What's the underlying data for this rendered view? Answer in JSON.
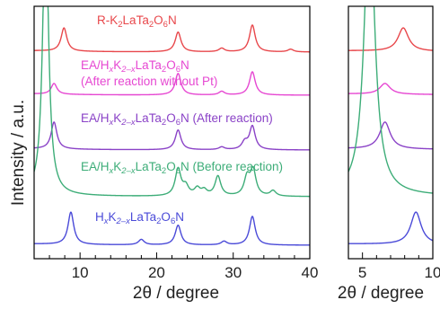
{
  "chart_data": {
    "type": "line",
    "ylabel": "Intensity / a.u.",
    "xlabel": "2θ / degree",
    "panels": [
      {
        "name": "main",
        "xlim": [
          4,
          40
        ],
        "xticks": [
          10,
          20,
          30,
          40
        ],
        "minor_step": 2
      },
      {
        "name": "inset",
        "xlim": [
          4,
          10
        ],
        "xticks": [
          5,
          10
        ],
        "minor_step": 1
      }
    ],
    "series": [
      {
        "key": "r",
        "color": "#e8474b",
        "label_parts": [
          "R-K",
          "2",
          "LaTa",
          "2",
          "O",
          "6",
          "N"
        ],
        "label_kinds": [
          "t",
          "sub",
          "t",
          "sub",
          "t",
          "sub",
          "t"
        ],
        "peaks": [
          [
            7.9,
            26
          ],
          [
            22.8,
            22
          ],
          [
            32.5,
            30
          ],
          [
            28.5,
            4
          ],
          [
            37.5,
            3
          ]
        ]
      },
      {
        "key": "ptfree",
        "color": "#e647d2",
        "label_parts": [
          "EA/H",
          "x",
          "K",
          "2–x",
          "LaTa",
          "2",
          "O",
          "6",
          "N"
        ],
        "label_kinds": [
          "t",
          "sub",
          "t",
          "sub",
          "t",
          "sub",
          "t",
          "sub",
          "t"
        ],
        "label_line2": "(After reaction without Pt)",
        "peaks": [
          [
            6.6,
            12
          ],
          [
            22.8,
            24
          ],
          [
            32.5,
            26
          ],
          [
            28.5,
            4
          ]
        ]
      },
      {
        "key": "after",
        "color": "#8a42c7",
        "label_parts": [
          "EA/H",
          "x",
          "K",
          "2–x",
          "LaTa",
          "2",
          "O",
          "6",
          "N"
        ],
        "label_kinds": [
          "t",
          "sub",
          "t",
          "sub",
          "t",
          "sub",
          "t",
          "sub",
          "t"
        ],
        "label_tail": " (After reaction)",
        "peaks": [
          [
            6.6,
            30
          ],
          [
            22.8,
            22
          ],
          [
            31.5,
            8
          ],
          [
            32.5,
            26
          ],
          [
            28.5,
            3
          ]
        ]
      },
      {
        "key": "before",
        "color": "#3dad78",
        "label_parts": [
          "EA/H",
          "x",
          "K",
          "2–x",
          "LaTa",
          "2",
          "O",
          "6",
          "N"
        ],
        "label_kinds": [
          "t",
          "sub",
          "t",
          "sub",
          "t",
          "sub",
          "t",
          "sub",
          "t"
        ],
        "label_tail": " (Before reaction)",
        "peaks": [
          [
            5.5,
            320
          ],
          [
            22.8,
            30
          ],
          [
            28.0,
            22
          ],
          [
            31.8,
            20
          ],
          [
            32.6,
            28
          ],
          [
            23.8,
            10
          ],
          [
            25.3,
            8
          ],
          [
            26.2,
            6
          ],
          [
            35.2,
            6
          ]
        ]
      },
      {
        "key": "hx",
        "color": "#4a4ad8",
        "label_parts": [
          "H",
          "x",
          "K",
          "2–x",
          "LaTa",
          "2",
          "O",
          "6",
          "N"
        ],
        "label_kinds": [
          "t",
          "sub",
          "t",
          "sub",
          "t",
          "sub",
          "t",
          "sub",
          "t"
        ],
        "peaks": [
          [
            8.8,
            36
          ],
          [
            18.0,
            6
          ],
          [
            22.8,
            22
          ],
          [
            28.8,
            4
          ],
          [
            32.5,
            32
          ]
        ]
      }
    ]
  }
}
